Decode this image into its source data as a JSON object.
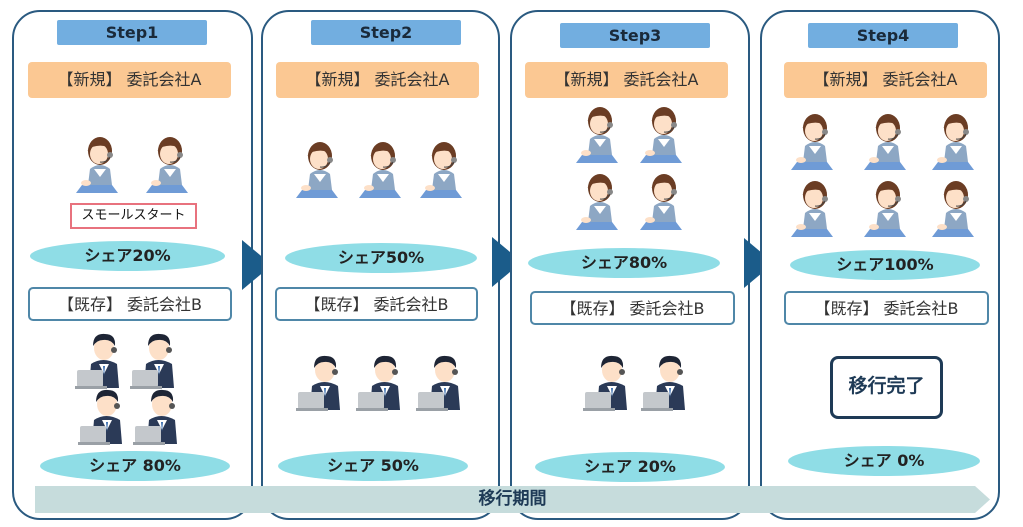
{
  "panels": [
    {
      "step": "Step1",
      "company_a": "【新規】 委託会社A",
      "note": "スモールスタート",
      "share_a": "シェア20%",
      "company_b": "【既存】 委託会社B",
      "share_b": "シェア 80%"
    },
    {
      "step": "Step2",
      "company_a": "【新規】 委託会社A",
      "share_a": "シェア50%",
      "company_b": "【既存】 委託会社B",
      "share_b": "シェア 50%"
    },
    {
      "step": "Step3",
      "company_a": "【新規】 委託会社A",
      "share_a": "シェア80%",
      "company_b": "【既存】 委託会社B",
      "share_b": "シェア 20%"
    },
    {
      "step": "Step4",
      "company_a": "【新規】 委託会社A",
      "share_a": "シェア100%",
      "company_b": "【既存】 委託会社B",
      "completion": "移行完了",
      "share_b": "シェア 0%"
    }
  ],
  "period_label": "移行期間",
  "icons": {
    "operator_a": "female-operator-icon",
    "operator_b": "male-operator-icon",
    "step_arrow": "chevron-right-icon"
  },
  "colors": {
    "step": "#72aee0",
    "company_a": "#fbc893",
    "share": "#8fdde6",
    "border": "#2a5a80",
    "arrow": "#1b5c8a",
    "period": "#c6dcdc"
  }
}
